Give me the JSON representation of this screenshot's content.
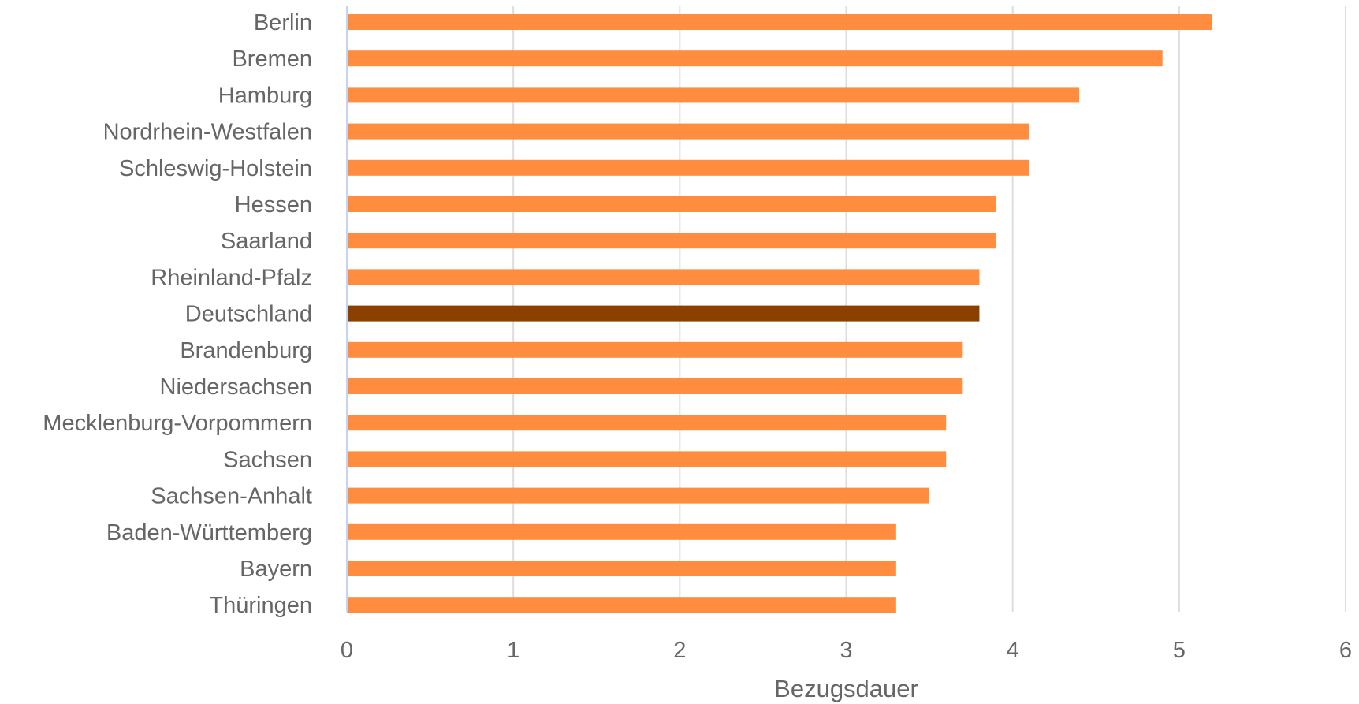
{
  "chart_data": {
    "type": "bar",
    "orientation": "horizontal",
    "categories": [
      "Berlin",
      "Bremen",
      "Hamburg",
      "Nordrhein-Westfalen",
      "Schleswig-Holstein",
      "Hessen",
      "Saarland",
      "Rheinland-Pfalz",
      "Deutschland",
      "Brandenburg",
      "Niedersachsen",
      "Mecklenburg-Vorpommern",
      "Sachsen",
      "Sachsen-Anhalt",
      "Baden-Württemberg",
      "Bayern",
      "Thüringen"
    ],
    "values": [
      5.2,
      4.9,
      4.4,
      4.1,
      4.1,
      3.9,
      3.9,
      3.8,
      3.8,
      3.7,
      3.7,
      3.6,
      3.6,
      3.5,
      3.3,
      3.3,
      3.3
    ],
    "highlight": "Deutschland",
    "xlabel": "Bezugsdauer",
    "ylabel": "",
    "title": "",
    "xlim": [
      0,
      6
    ],
    "xticks": [
      0,
      1,
      2,
      3,
      4,
      5,
      6
    ],
    "grid": "vertical",
    "colors": {
      "bar": "#FF8C3F",
      "highlight": "#8B4000",
      "grid": "#DDDDDD",
      "axis": "#C8D2EC",
      "text": "#666666"
    }
  }
}
